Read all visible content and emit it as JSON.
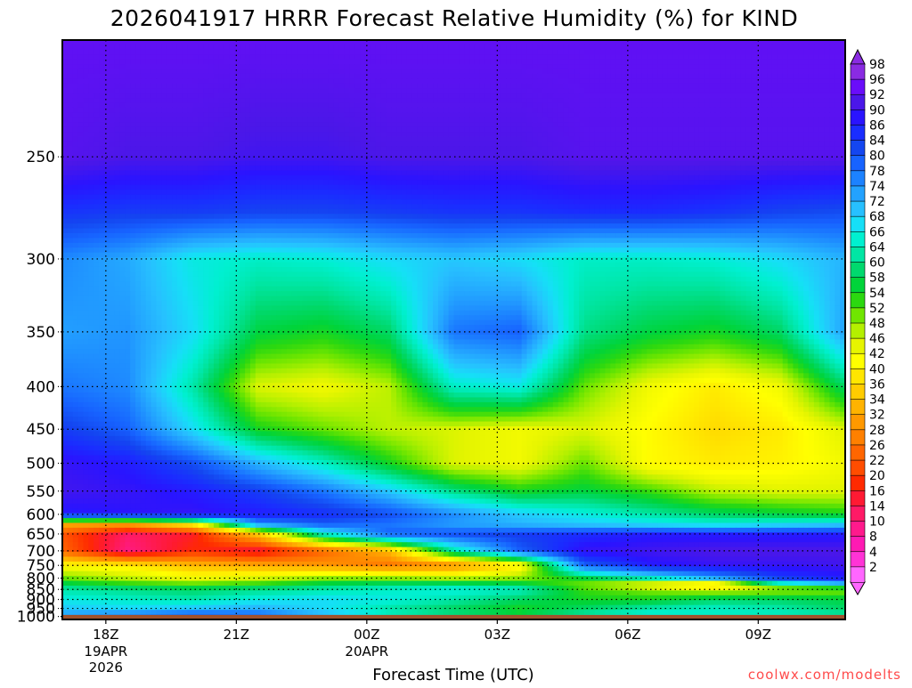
{
  "chart_data": {
    "type": "heatmap",
    "title": "2026041917 HRRR Forecast Relative Humidity (%) for KIND",
    "xlabel": "Forecast Time (UTC)",
    "credit": "coolwx.com/modelts",
    "y_ticks": [
      "250",
      "300",
      "350",
      "400",
      "450",
      "500",
      "550",
      "600",
      "650",
      "700",
      "750",
      "800",
      "850",
      "900",
      "950",
      "1000"
    ],
    "y_axis": {
      "scale": "reciprocal",
      "unit": "hPa",
      "range": [
        1020,
        210
      ]
    },
    "x_ticks": [
      {
        "label": "18Z",
        "sub": [
          "19APR",
          "2026"
        ],
        "hour": 18
      },
      {
        "label": "21Z",
        "sub": [],
        "hour": 21
      },
      {
        "label": "00Z",
        "sub": [
          "20APR"
        ],
        "hour": 24
      },
      {
        "label": "03Z",
        "sub": [],
        "hour": 27
      },
      {
        "label": "06Z",
        "sub": [],
        "hour": 30
      },
      {
        "label": "09Z",
        "sub": [],
        "hour": 33
      }
    ],
    "x_range": [
      17,
      35
    ],
    "grid": true,
    "ground_pressure": 990,
    "colorbar": {
      "labels": [
        "98",
        "96",
        "92",
        "90",
        "86",
        "84",
        "80",
        "78",
        "74",
        "72",
        "68",
        "66",
        "64",
        "60",
        "58",
        "54",
        "52",
        "48",
        "46",
        "42",
        "40",
        "36",
        "34",
        "32",
        "28",
        "26",
        "22",
        "20",
        "16",
        "14",
        "10",
        "8",
        "4",
        "2"
      ],
      "colors": [
        "#8a2be2",
        "#6a0dfa",
        "#4b17e8",
        "#2a14ff",
        "#1a2dff",
        "#1446f0",
        "#1763ff",
        "#1c82ff",
        "#23a2ff",
        "#27c0ff",
        "#16dff7",
        "#00f0d0",
        "#00e6a4",
        "#00d96e",
        "#00d43a",
        "#2bd810",
        "#70e600",
        "#b4f000",
        "#e6f500",
        "#ffff00",
        "#ffe600",
        "#ffcc00",
        "#ffb300",
        "#ff9900",
        "#ff8000",
        "#ff6600",
        "#ff4d00",
        "#ff2a00",
        "#ff1a33",
        "#ff1a66",
        "#ff1a8c",
        "#ff1ab3",
        "#ff33d6",
        "#ff66ff"
      ]
    },
    "rh_rows": [
      {
        "p": 210,
        "values": [
          96,
          96,
          96,
          96,
          96,
          96,
          96,
          96,
          96,
          96,
          96,
          96,
          96
        ]
      },
      {
        "p": 250,
        "values": [
          95,
          94,
          94,
          93,
          93,
          94,
          94,
          94,
          95,
          95,
          95,
          95,
          95
        ]
      },
      {
        "p": 275,
        "values": [
          87,
          86,
          86,
          85,
          85,
          86,
          87,
          87,
          88,
          88,
          87,
          85,
          84
        ]
      },
      {
        "p": 300,
        "values": [
          78,
          75,
          68,
          66,
          67,
          70,
          72,
          70,
          66,
          66,
          67,
          70,
          74
        ]
      },
      {
        "p": 350,
        "values": [
          76,
          77,
          70,
          58,
          56,
          60,
          80,
          82,
          62,
          58,
          56,
          60,
          76
        ]
      },
      {
        "p": 400,
        "values": [
          80,
          78,
          64,
          46,
          44,
          48,
          66,
          68,
          52,
          44,
          40,
          44,
          60
        ]
      },
      {
        "p": 450,
        "values": [
          86,
          82,
          70,
          56,
          52,
          48,
          46,
          44,
          46,
          42,
          38,
          40,
          46
        ]
      },
      {
        "p": 500,
        "values": [
          92,
          90,
          84,
          74,
          66,
          56,
          46,
          44,
          52,
          42,
          40,
          41,
          44
        ]
      },
      {
        "p": 550,
        "values": [
          93,
          92,
          90,
          86,
          80,
          72,
          62,
          56,
          58,
          54,
          48,
          46,
          46
        ]
      },
      {
        "p": 600,
        "values": [
          90,
          91,
          92,
          90,
          88,
          84,
          78,
          72,
          68,
          64,
          60,
          58,
          56
        ]
      },
      {
        "p": 625,
        "values": [
          32,
          30,
          40,
          76,
          82,
          80,
          76,
          74,
          72,
          70,
          68,
          70,
          72
        ]
      },
      {
        "p": 650,
        "values": [
          22,
          12,
          16,
          36,
          66,
          82,
          84,
          86,
          88,
          90,
          90,
          90,
          90
        ]
      },
      {
        "p": 700,
        "values": [
          24,
          10,
          18,
          14,
          24,
          34,
          64,
          82,
          92,
          93,
          94,
          94,
          94
        ]
      },
      {
        "p": 750,
        "values": [
          42,
          40,
          34,
          32,
          30,
          26,
          28,
          40,
          82,
          90,
          92,
          92,
          93
        ]
      },
      {
        "p": 800,
        "values": [
          52,
          48,
          44,
          46,
          50,
          50,
          48,
          50,
          58,
          66,
          76,
          86,
          90
        ]
      },
      {
        "p": 830,
        "values": [
          60,
          56,
          54,
          56,
          60,
          62,
          62,
          60,
          50,
          40,
          30,
          60,
          70
        ]
      },
      {
        "p": 850,
        "values": [
          64,
          62,
          60,
          62,
          64,
          66,
          68,
          66,
          54,
          50,
          46,
          48,
          50
        ]
      },
      {
        "p": 900,
        "values": [
          68,
          66,
          64,
          68,
          70,
          68,
          64,
          60,
          56,
          56,
          60,
          60,
          58
        ]
      },
      {
        "p": 950,
        "values": [
          72,
          70,
          72,
          74,
          70,
          64,
          60,
          56,
          60,
          64,
          66,
          64,
          60
        ]
      },
      {
        "p": 990,
        "values": [
          76,
          80,
          84,
          82,
          74,
          66,
          62,
          58,
          64,
          68,
          66,
          66,
          64
        ]
      }
    ]
  }
}
